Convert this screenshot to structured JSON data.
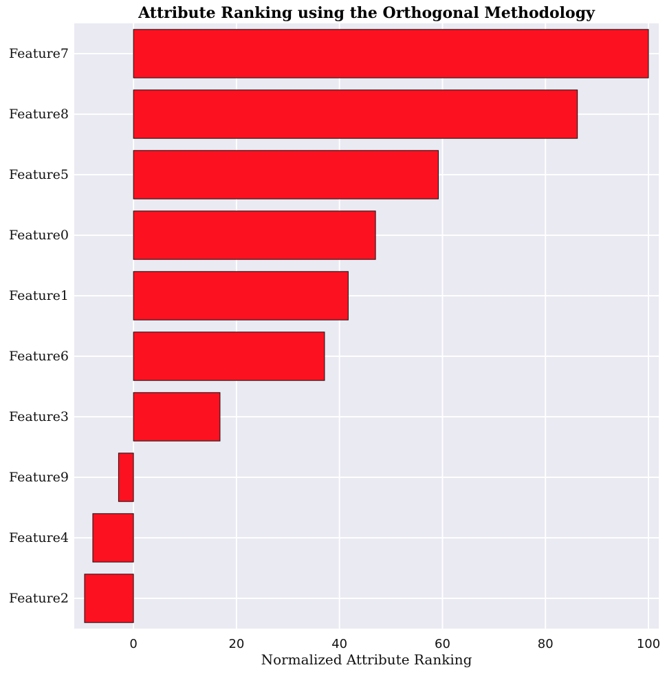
{
  "chart_data": {
    "type": "bar",
    "orientation": "horizontal",
    "title": "Attribute Ranking using the Orthogonal Methodology",
    "xlabel": "Normalized Attribute Ranking",
    "ylabel": "",
    "categories": [
      "Feature7",
      "Feature8",
      "Feature5",
      "Feature0",
      "Feature1",
      "Feature6",
      "Feature3",
      "Feature9",
      "Feature4",
      "Feature2"
    ],
    "values": [
      100,
      86.2,
      59.2,
      47,
      41.7,
      37.1,
      16.8,
      -2.9,
      -7.9,
      -9.5
    ],
    "xlim": [
      -11.5,
      102
    ],
    "xticks": [
      0,
      20,
      40,
      60,
      80,
      100
    ],
    "grid": true,
    "colors": {
      "bar": "#fc1120",
      "bar_edge": "#111111",
      "plot_bg": "#e9eaf2",
      "grid": "#ffffff"
    }
  }
}
